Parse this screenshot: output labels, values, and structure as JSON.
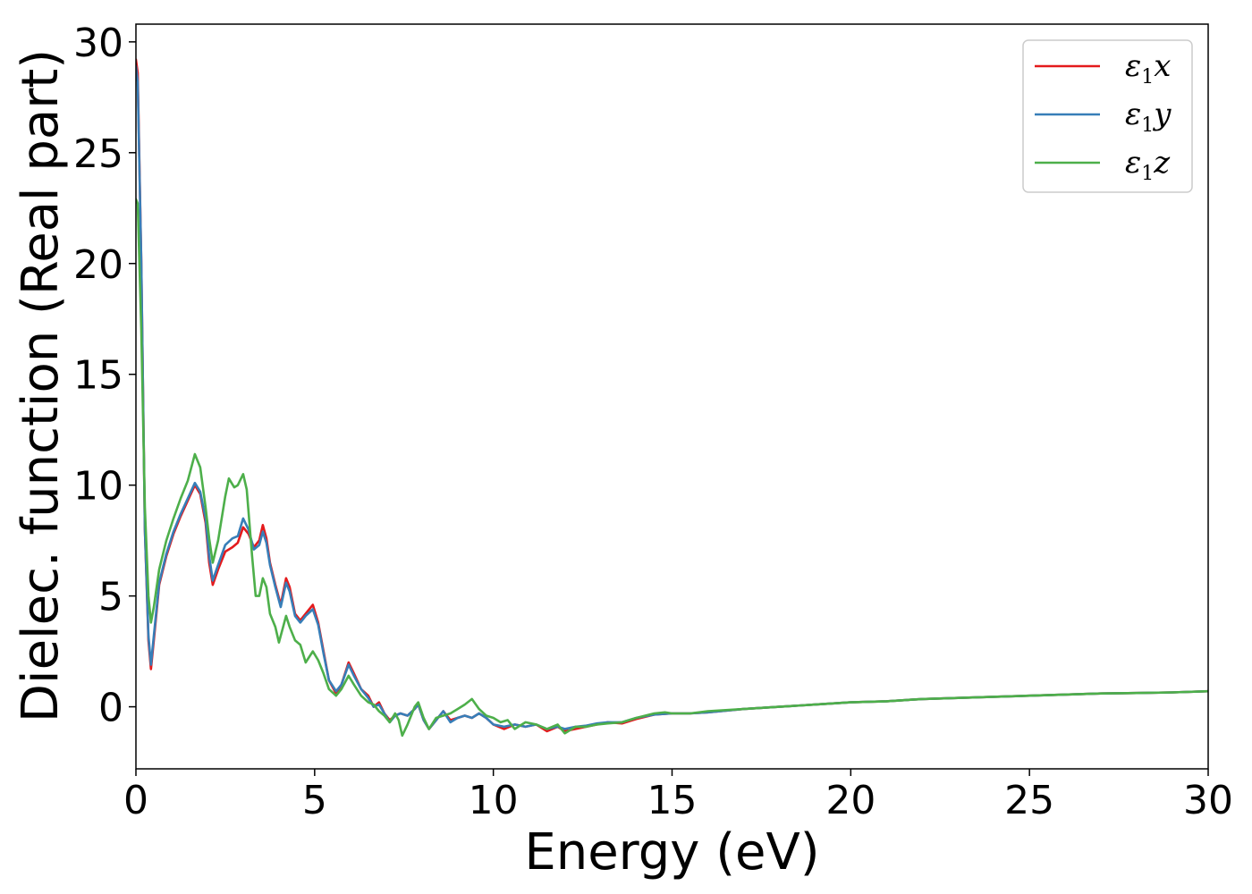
{
  "chart_data": {
    "type": "line",
    "title": "",
    "xlabel": "Energy (eV)",
    "ylabel": "Dielec. function (Real part)",
    "xlim": [
      0,
      30
    ],
    "ylim": [
      -2.8,
      30.8
    ],
    "xticks": [
      0,
      5,
      10,
      15,
      20,
      25,
      30
    ],
    "yticks": [
      0,
      5,
      10,
      15,
      20,
      25,
      30
    ],
    "grid": false,
    "legend_position": "top-right",
    "series": [
      {
        "name": "ε₁x",
        "legend_base": "ε",
        "legend_sub": "1",
        "legend_var": "x",
        "color": "#e41a1c",
        "points": [
          [
            0,
            29.2
          ],
          [
            0.05,
            28.6
          ],
          [
            0.15,
            20
          ],
          [
            0.25,
            8
          ],
          [
            0.35,
            3
          ],
          [
            0.42,
            1.7
          ],
          [
            0.5,
            3
          ],
          [
            0.65,
            5.5
          ],
          [
            0.85,
            6.8
          ],
          [
            1.05,
            7.8
          ],
          [
            1.25,
            8.6
          ],
          [
            1.45,
            9.3
          ],
          [
            1.65,
            10
          ],
          [
            1.8,
            9.6
          ],
          [
            1.95,
            8.3
          ],
          [
            2.05,
            6.5
          ],
          [
            2.15,
            5.5
          ],
          [
            2.3,
            6.2
          ],
          [
            2.5,
            7
          ],
          [
            2.7,
            7.2
          ],
          [
            2.85,
            7.4
          ],
          [
            3.0,
            8.1
          ],
          [
            3.15,
            7.8
          ],
          [
            3.3,
            7.2
          ],
          [
            3.45,
            7.5
          ],
          [
            3.55,
            8.2
          ],
          [
            3.65,
            7.6
          ],
          [
            3.75,
            6.5
          ],
          [
            3.9,
            5.5
          ],
          [
            4.05,
            4.6
          ],
          [
            4.2,
            5.8
          ],
          [
            4.3,
            5.4
          ],
          [
            4.45,
            4.2
          ],
          [
            4.6,
            3.9
          ],
          [
            4.75,
            4.2
          ],
          [
            4.95,
            4.6
          ],
          [
            5.1,
            3.8
          ],
          [
            5.25,
            2.5
          ],
          [
            5.4,
            1.2
          ],
          [
            5.6,
            0.6
          ],
          [
            5.75,
            1.0
          ],
          [
            5.95,
            2.0
          ],
          [
            6.1,
            1.5
          ],
          [
            6.3,
            0.8
          ],
          [
            6.5,
            0.5
          ],
          [
            6.65,
            0
          ],
          [
            6.8,
            0.2
          ],
          [
            6.95,
            -0.3
          ],
          [
            7.1,
            -0.6
          ],
          [
            7.25,
            -0.4
          ],
          [
            7.4,
            -0.3
          ],
          [
            7.6,
            -0.4
          ],
          [
            7.8,
            -0.1
          ],
          [
            7.9,
            0.1
          ],
          [
            8.05,
            -0.6
          ],
          [
            8.2,
            -1.0
          ],
          [
            8.4,
            -0.6
          ],
          [
            8.6,
            -0.2
          ],
          [
            8.8,
            -0.6
          ],
          [
            9.0,
            -0.5
          ],
          [
            9.2,
            -0.4
          ],
          [
            9.4,
            -0.5
          ],
          [
            9.6,
            -0.3
          ],
          [
            9.8,
            -0.5
          ],
          [
            10.0,
            -0.8
          ],
          [
            10.3,
            -1.0
          ],
          [
            10.6,
            -0.8
          ],
          [
            10.9,
            -0.9
          ],
          [
            11.2,
            -0.8
          ],
          [
            11.5,
            -1.1
          ],
          [
            11.8,
            -0.9
          ],
          [
            12.0,
            -1.1
          ],
          [
            12.3,
            -1.0
          ],
          [
            12.6,
            -0.9
          ],
          [
            12.9,
            -0.8
          ],
          [
            13.2,
            -0.7
          ],
          [
            13.6,
            -0.75
          ],
          [
            14.0,
            -0.55
          ],
          [
            14.5,
            -0.35
          ],
          [
            15.0,
            -0.3
          ],
          [
            15.5,
            -0.3
          ],
          [
            16.0,
            -0.25
          ],
          [
            17.0,
            -0.1
          ],
          [
            18.0,
            0.0
          ],
          [
            19.0,
            0.1
          ],
          [
            20.0,
            0.2
          ],
          [
            21.0,
            0.25
          ],
          [
            22.0,
            0.35
          ],
          [
            23.0,
            0.4
          ],
          [
            24.0,
            0.45
          ],
          [
            25.0,
            0.5
          ],
          [
            26.0,
            0.55
          ],
          [
            27.0,
            0.6
          ],
          [
            28.0,
            0.62
          ],
          [
            29.0,
            0.65
          ],
          [
            30.0,
            0.7
          ]
        ]
      },
      {
        "name": "ε₁y",
        "legend_base": "ε",
        "legend_sub": "1",
        "legend_var": "y",
        "color": "#377eb8",
        "points": [
          [
            0,
            28.9
          ],
          [
            0.05,
            28.2
          ],
          [
            0.15,
            20
          ],
          [
            0.25,
            8
          ],
          [
            0.35,
            3.2
          ],
          [
            0.42,
            1.9
          ],
          [
            0.5,
            3.2
          ],
          [
            0.65,
            5.6
          ],
          [
            0.85,
            6.9
          ],
          [
            1.05,
            7.9
          ],
          [
            1.25,
            8.7
          ],
          [
            1.45,
            9.4
          ],
          [
            1.65,
            10.1
          ],
          [
            1.8,
            9.7
          ],
          [
            1.95,
            8.5
          ],
          [
            2.05,
            6.8
          ],
          [
            2.15,
            5.7
          ],
          [
            2.3,
            6.4
          ],
          [
            2.5,
            7.3
          ],
          [
            2.7,
            7.6
          ],
          [
            2.85,
            7.7
          ],
          [
            3.0,
            8.5
          ],
          [
            3.15,
            8.0
          ],
          [
            3.3,
            7.1
          ],
          [
            3.45,
            7.3
          ],
          [
            3.55,
            7.9
          ],
          [
            3.65,
            7.4
          ],
          [
            3.75,
            6.4
          ],
          [
            3.9,
            5.4
          ],
          [
            4.05,
            4.5
          ],
          [
            4.2,
            5.6
          ],
          [
            4.3,
            5.2
          ],
          [
            4.45,
            4.1
          ],
          [
            4.6,
            3.8
          ],
          [
            4.75,
            4.1
          ],
          [
            4.95,
            4.4
          ],
          [
            5.1,
            3.7
          ],
          [
            5.25,
            2.4
          ],
          [
            5.4,
            1.2
          ],
          [
            5.6,
            0.7
          ],
          [
            5.75,
            1.0
          ],
          [
            5.95,
            1.9
          ],
          [
            6.1,
            1.4
          ],
          [
            6.3,
            0.8
          ],
          [
            6.5,
            0.4
          ],
          [
            6.65,
            0
          ],
          [
            6.8,
            0.1
          ],
          [
            6.95,
            -0.3
          ],
          [
            7.1,
            -0.7
          ],
          [
            7.25,
            -0.4
          ],
          [
            7.4,
            -0.3
          ],
          [
            7.6,
            -0.4
          ],
          [
            7.8,
            -0.1
          ],
          [
            7.9,
            0.1
          ],
          [
            8.05,
            -0.6
          ],
          [
            8.2,
            -1.0
          ],
          [
            8.4,
            -0.6
          ],
          [
            8.6,
            -0.2
          ],
          [
            8.8,
            -0.7
          ],
          [
            9.0,
            -0.5
          ],
          [
            9.2,
            -0.4
          ],
          [
            9.4,
            -0.5
          ],
          [
            9.6,
            -0.3
          ],
          [
            9.8,
            -0.5
          ],
          [
            10.0,
            -0.8
          ],
          [
            10.3,
            -0.9
          ],
          [
            10.6,
            -0.8
          ],
          [
            10.9,
            -0.9
          ],
          [
            11.2,
            -0.8
          ],
          [
            11.5,
            -1.0
          ],
          [
            11.8,
            -0.9
          ],
          [
            12.0,
            -1.0
          ],
          [
            12.3,
            -0.9
          ],
          [
            12.6,
            -0.85
          ],
          [
            12.9,
            -0.75
          ],
          [
            13.2,
            -0.7
          ],
          [
            13.6,
            -0.7
          ],
          [
            14.0,
            -0.5
          ],
          [
            14.5,
            -0.35
          ],
          [
            15.0,
            -0.3
          ],
          [
            15.5,
            -0.3
          ],
          [
            16.0,
            -0.25
          ],
          [
            17.0,
            -0.1
          ],
          [
            18.0,
            0.0
          ],
          [
            19.0,
            0.1
          ],
          [
            20.0,
            0.2
          ],
          [
            21.0,
            0.25
          ],
          [
            22.0,
            0.35
          ],
          [
            23.0,
            0.4
          ],
          [
            24.0,
            0.45
          ],
          [
            25.0,
            0.5
          ],
          [
            26.0,
            0.55
          ],
          [
            27.0,
            0.6
          ],
          [
            28.0,
            0.62
          ],
          [
            29.0,
            0.65
          ],
          [
            30.0,
            0.7
          ]
        ]
      },
      {
        "name": "ε₁z",
        "legend_base": "ε",
        "legend_sub": "1",
        "legend_var": "z",
        "color": "#4daf4a",
        "points": [
          [
            0,
            22.9
          ],
          [
            0.05,
            22.7
          ],
          [
            0.15,
            17
          ],
          [
            0.25,
            9
          ],
          [
            0.35,
            5
          ],
          [
            0.42,
            3.8
          ],
          [
            0.5,
            4.5
          ],
          [
            0.65,
            6.2
          ],
          [
            0.85,
            7.5
          ],
          [
            1.05,
            8.5
          ],
          [
            1.25,
            9.4
          ],
          [
            1.45,
            10.2
          ],
          [
            1.65,
            11.4
          ],
          [
            1.8,
            10.8
          ],
          [
            1.95,
            9.0
          ],
          [
            2.05,
            7.6
          ],
          [
            2.15,
            6.5
          ],
          [
            2.3,
            7.5
          ],
          [
            2.5,
            9.5
          ],
          [
            2.6,
            10.3
          ],
          [
            2.75,
            9.9
          ],
          [
            2.85,
            10.0
          ],
          [
            3.0,
            10.5
          ],
          [
            3.1,
            9.8
          ],
          [
            3.25,
            6.8
          ],
          [
            3.35,
            5.0
          ],
          [
            3.45,
            5.0
          ],
          [
            3.55,
            5.8
          ],
          [
            3.65,
            5.4
          ],
          [
            3.75,
            4.2
          ],
          [
            3.9,
            3.6
          ],
          [
            4.0,
            2.9
          ],
          [
            4.1,
            3.5
          ],
          [
            4.2,
            4.1
          ],
          [
            4.3,
            3.6
          ],
          [
            4.45,
            3.0
          ],
          [
            4.6,
            2.8
          ],
          [
            4.75,
            2.0
          ],
          [
            4.95,
            2.5
          ],
          [
            5.1,
            2.1
          ],
          [
            5.25,
            1.5
          ],
          [
            5.4,
            0.8
          ],
          [
            5.6,
            0.5
          ],
          [
            5.75,
            0.8
          ],
          [
            5.95,
            1.4
          ],
          [
            6.1,
            1.0
          ],
          [
            6.3,
            0.5
          ],
          [
            6.5,
            0.2
          ],
          [
            6.65,
            0.1
          ],
          [
            6.8,
            -0.2
          ],
          [
            6.95,
            -0.4
          ],
          [
            7.1,
            -0.7
          ],
          [
            7.25,
            -0.3
          ],
          [
            7.35,
            -0.6
          ],
          [
            7.45,
            -1.3
          ],
          [
            7.6,
            -0.8
          ],
          [
            7.8,
            0
          ],
          [
            7.9,
            0.2
          ],
          [
            8.05,
            -0.5
          ],
          [
            8.2,
            -1.0
          ],
          [
            8.4,
            -0.5
          ],
          [
            8.6,
            -0.4
          ],
          [
            8.8,
            -0.3
          ],
          [
            9.0,
            -0.1
          ],
          [
            9.2,
            0.1
          ],
          [
            9.4,
            0.35
          ],
          [
            9.6,
            -0.1
          ],
          [
            9.8,
            -0.4
          ],
          [
            10.0,
            -0.5
          ],
          [
            10.2,
            -0.7
          ],
          [
            10.4,
            -0.6
          ],
          [
            10.6,
            -1.0
          ],
          [
            10.9,
            -0.7
          ],
          [
            11.2,
            -0.8
          ],
          [
            11.5,
            -1.0
          ],
          [
            11.8,
            -0.8
          ],
          [
            12.0,
            -1.2
          ],
          [
            12.3,
            -0.9
          ],
          [
            12.6,
            -0.9
          ],
          [
            12.9,
            -0.8
          ],
          [
            13.2,
            -0.75
          ],
          [
            13.6,
            -0.7
          ],
          [
            14.0,
            -0.5
          ],
          [
            14.5,
            -0.3
          ],
          [
            14.8,
            -0.25
          ],
          [
            15.0,
            -0.3
          ],
          [
            15.5,
            -0.3
          ],
          [
            16.0,
            -0.2
          ],
          [
            17.0,
            -0.1
          ],
          [
            18.0,
            0.0
          ],
          [
            19.0,
            0.1
          ],
          [
            20.0,
            0.2
          ],
          [
            21.0,
            0.25
          ],
          [
            22.0,
            0.35
          ],
          [
            23.0,
            0.4
          ],
          [
            24.0,
            0.45
          ],
          [
            25.0,
            0.5
          ],
          [
            26.0,
            0.55
          ],
          [
            27.0,
            0.6
          ],
          [
            28.0,
            0.62
          ],
          [
            29.0,
            0.65
          ],
          [
            30.0,
            0.7
          ]
        ]
      }
    ]
  }
}
